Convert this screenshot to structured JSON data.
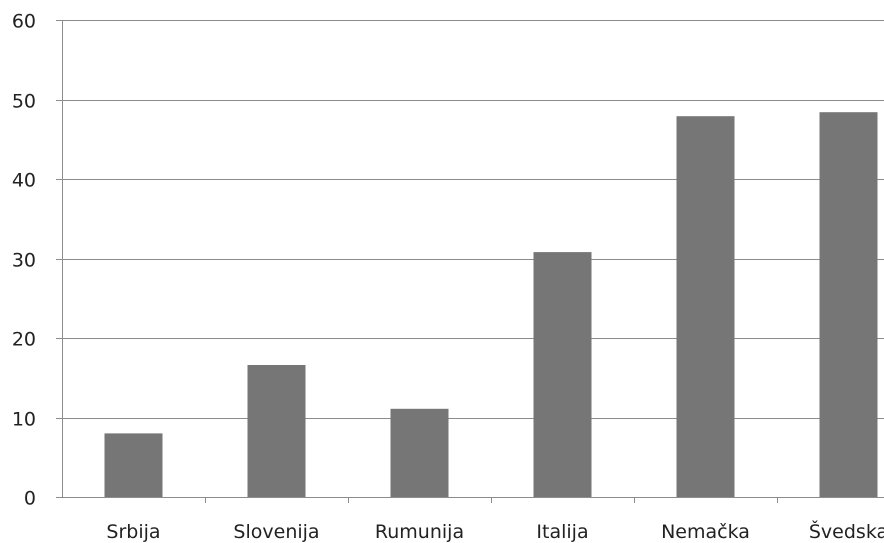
{
  "chart_data": {
    "type": "bar",
    "categories": [
      "Srbija",
      "Slovenija",
      "Rumunija",
      "Italija",
      "Nemačka",
      "Švedska"
    ],
    "values": [
      8,
      16.6,
      11.1,
      30.8,
      47.9,
      48.4
    ],
    "title": "",
    "xlabel": "",
    "ylabel": "",
    "ylim": [
      0,
      60
    ],
    "yticks": [
      0,
      10,
      20,
      30,
      40,
      50,
      60
    ],
    "grid": true,
    "legend": "none",
    "bar_color": "#767676"
  }
}
